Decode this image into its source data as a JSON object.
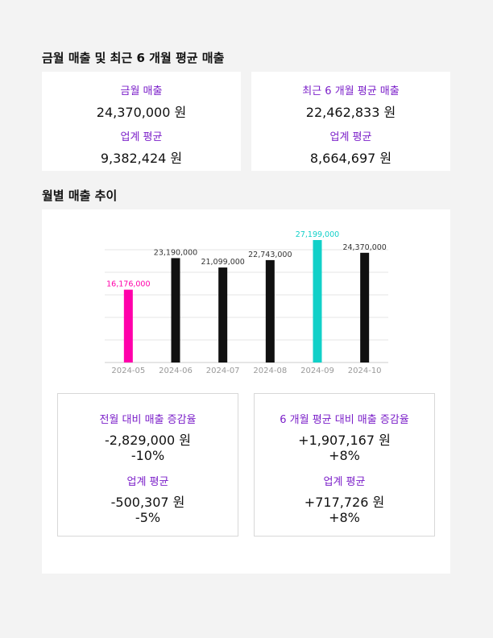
{
  "sections": {
    "summary_title": "금월 매출 및 최근 6 개월 평균 매출",
    "trend_title": "월별 매출 추이"
  },
  "summary": {
    "left": {
      "label1": "금월 매출",
      "value1": "24,370,000 원",
      "label2": "업계 평균",
      "value2": "9,382,424 원"
    },
    "right": {
      "label1": "최근 6 개월 평균 매출",
      "value1": "22,462,833 원",
      "label2": "업계 평균",
      "value2": "8,664,697 원"
    }
  },
  "comparison": {
    "left": {
      "label1": "전월 대비 매출 증감율",
      "value1": "-2,829,000 원",
      "pct1": "-10%",
      "label2": "업계 평균",
      "value2": "-500,307 원",
      "pct2": "-5%"
    },
    "right": {
      "label1": "6 개월 평균 대비 매출 증감율",
      "value1": "+1,907,167 원",
      "pct1": "+8%",
      "label2": "업계 평균",
      "value2": "+717,726 원",
      "pct2": "+8%"
    }
  },
  "chart_data": {
    "type": "bar",
    "title": "",
    "xlabel": "",
    "ylabel": "",
    "categories": [
      "2024-05",
      "2024-06",
      "2024-07",
      "2024-08",
      "2024-09",
      "2024-10"
    ],
    "values": [
      16176000,
      23190000,
      21099000,
      22743000,
      27199000,
      24370000
    ],
    "value_labels": [
      "16,176,000",
      "23,190,000",
      "21,099,000",
      "22,743,000",
      "27,199,000",
      "24,370,000"
    ],
    "ylim": [
      0,
      27199000
    ],
    "grid": true,
    "colors": {
      "min": "#ff00aa",
      "max": "#11d0c8",
      "default": "#111111",
      "label_default": "#333333"
    }
  }
}
